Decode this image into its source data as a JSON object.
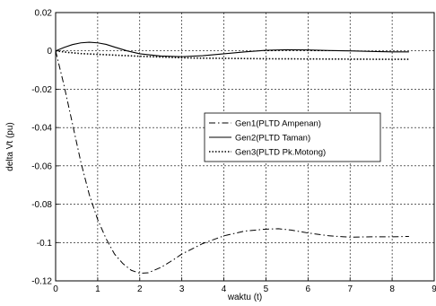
{
  "chart_data": {
    "type": "line",
    "title": "",
    "xlabel": "waktu (t)",
    "ylabel": "delta Vt (pu)",
    "xlim": [
      0,
      9
    ],
    "ylim": [
      -0.12,
      0.02
    ],
    "x_ticks": [
      "0",
      "1",
      "2",
      "3",
      "4",
      "5",
      "6",
      "7",
      "8",
      "9"
    ],
    "y_ticks": [
      "0.02",
      "0",
      "-0.02",
      "-0.04",
      "-0.06",
      "-0.08",
      "-0.1",
      "-0.12"
    ],
    "grid": true,
    "legend_position": "center-right",
    "series": [
      {
        "name": "Gen1(PLTD Ampenan)",
        "style": "dash-dot",
        "color": "#000000",
        "points": [
          [
            0,
            0
          ],
          [
            0.2,
            -0.018
          ],
          [
            0.4,
            -0.038
          ],
          [
            0.6,
            -0.058
          ],
          [
            0.8,
            -0.075
          ],
          [
            1.0,
            -0.088
          ],
          [
            1.2,
            -0.098
          ],
          [
            1.4,
            -0.106
          ],
          [
            1.6,
            -0.111
          ],
          [
            1.8,
            -0.1145
          ],
          [
            2.0,
            -0.116
          ],
          [
            2.2,
            -0.1158
          ],
          [
            2.5,
            -0.113
          ],
          [
            2.8,
            -0.109
          ],
          [
            3.0,
            -0.106
          ],
          [
            3.5,
            -0.1005
          ],
          [
            4.0,
            -0.0965
          ],
          [
            4.5,
            -0.094
          ],
          [
            5.0,
            -0.093
          ],
          [
            5.3,
            -0.0928
          ],
          [
            5.6,
            -0.0935
          ],
          [
            6.0,
            -0.095
          ],
          [
            6.5,
            -0.0965
          ],
          [
            7.0,
            -0.0972
          ],
          [
            7.5,
            -0.097
          ],
          [
            8.0,
            -0.097
          ],
          [
            8.4,
            -0.0968
          ]
        ]
      },
      {
        "name": "Gen2(PLTD Taman)",
        "style": "solid",
        "color": "#000000",
        "points": [
          [
            0,
            0
          ],
          [
            0.2,
            0.0018
          ],
          [
            0.4,
            0.0033
          ],
          [
            0.6,
            0.0042
          ],
          [
            0.8,
            0.0045
          ],
          [
            1.0,
            0.0042
          ],
          [
            1.2,
            0.0034
          ],
          [
            1.4,
            0.002
          ],
          [
            1.7,
            0
          ],
          [
            2.0,
            -0.0015
          ],
          [
            2.5,
            -0.0027
          ],
          [
            3.0,
            -0.003
          ],
          [
            3.5,
            -0.0025
          ],
          [
            4.0,
            -0.0015
          ],
          [
            4.5,
            -0.0005
          ],
          [
            5.0,
            0.0003
          ],
          [
            5.5,
            0.0006
          ],
          [
            6.0,
            0.0005
          ],
          [
            6.5,
            0.0002
          ],
          [
            7.0,
            0
          ],
          [
            7.5,
            -0.0003
          ],
          [
            8.0,
            -0.0005
          ],
          [
            8.4,
            -0.0005
          ]
        ]
      },
      {
        "name": "Gen3(PLTD Pk.Motong)",
        "style": "dotted",
        "color": "#000000",
        "points": [
          [
            0,
            0
          ],
          [
            0.3,
            -0.0008
          ],
          [
            0.6,
            -0.0014
          ],
          [
            1.0,
            -0.0018
          ],
          [
            1.5,
            -0.0023
          ],
          [
            2.0,
            -0.0028
          ],
          [
            2.5,
            -0.0032
          ],
          [
            3.0,
            -0.0036
          ],
          [
            3.5,
            -0.0038
          ],
          [
            4.0,
            -0.0039
          ],
          [
            5.0,
            -0.0041
          ],
          [
            6.0,
            -0.0042
          ],
          [
            7.0,
            -0.0043
          ],
          [
            8.0,
            -0.0044
          ],
          [
            8.4,
            -0.0044
          ]
        ]
      }
    ]
  }
}
